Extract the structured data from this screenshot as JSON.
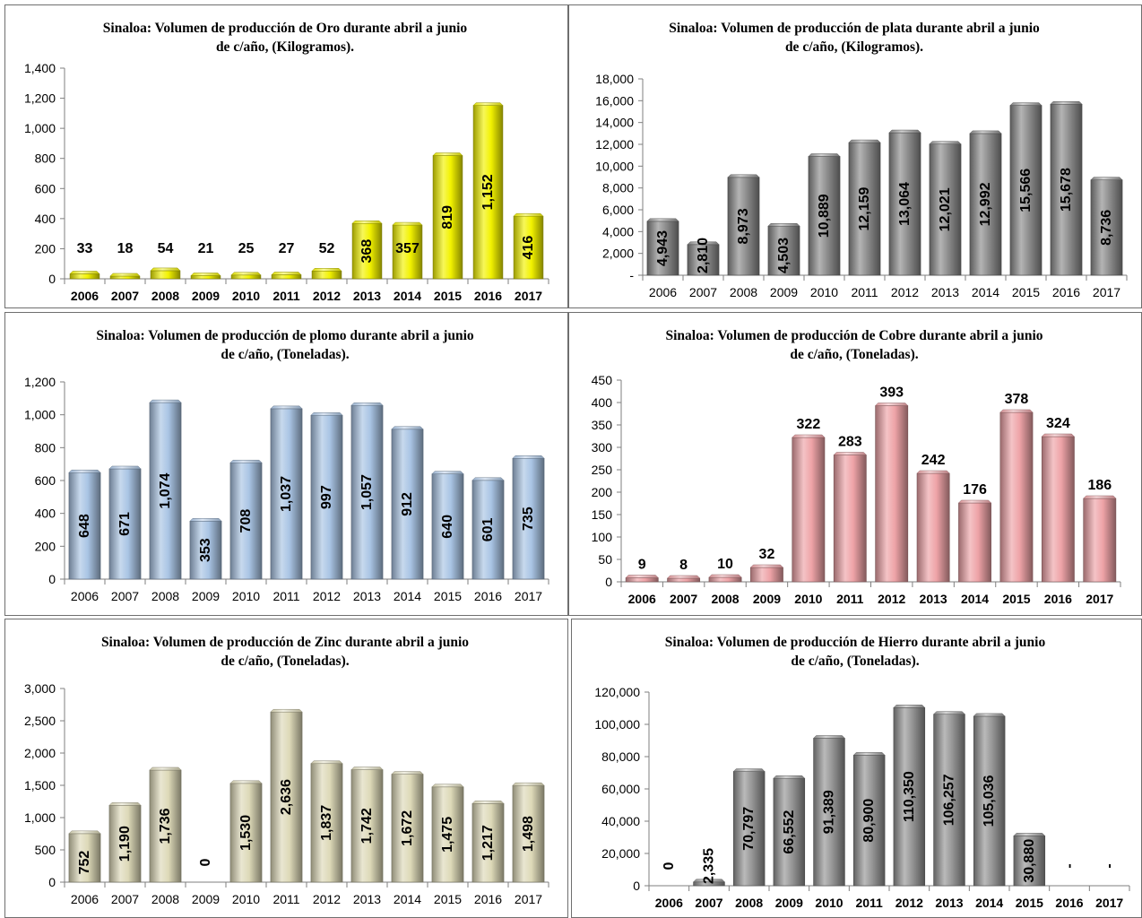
{
  "chart_data": [
    {
      "type": "bar",
      "title_lines": [
        "Sinaloa: Volumen de producción de Oro durante abril a junio",
        "de c/año, (Kilogramos)."
      ],
      "categories": [
        "2006",
        "2007",
        "2008",
        "2009",
        "2010",
        "2011",
        "2012",
        "2013",
        "2014",
        "2015",
        "2016",
        "2017"
      ],
      "values": [
        33,
        18,
        54,
        21,
        25,
        27,
        52,
        368,
        357,
        819,
        1152,
        416
      ],
      "data_labels": [
        "33",
        "18",
        "54",
        "21",
        "25",
        "27",
        "52",
        "368",
        "357",
        "819",
        "1,152",
        "416"
      ],
      "yticks": [
        "0",
        "200",
        "400",
        "600",
        "800",
        "1,000",
        "1,200",
        "1,400"
      ],
      "ylim": [
        0,
        1400
      ],
      "color": "#f2f200",
      "label_style": "rotated-mixed"
    },
    {
      "type": "bar",
      "title_lines": [
        "Sinaloa: Volumen de producción de plata durante abril a junio",
        "de c/año, (Kilogramos)."
      ],
      "categories": [
        "2006",
        "2007",
        "2008",
        "2009",
        "2010",
        "2011",
        "2012",
        "2013",
        "2014",
        "2015",
        "2016",
        "2017"
      ],
      "values": [
        4943,
        2810,
        8973,
        4503,
        10889,
        12159,
        13064,
        12021,
        12992,
        15566,
        15678,
        8736
      ],
      "data_labels": [
        "4,943",
        "2,810",
        "8,973",
        "4,503",
        "10,889",
        "12,159",
        "13,064",
        "12,021",
        "12,992",
        "15,566",
        "15,678",
        "8,736"
      ],
      "yticks": [
        "-",
        "2,000",
        "4,000",
        "6,000",
        "8,000",
        "10,000",
        "12,000",
        "14,000",
        "16,000",
        "18,000"
      ],
      "ylim": [
        0,
        18000
      ],
      "color": "#8c8c8c",
      "label_style": "rotated"
    },
    {
      "type": "bar",
      "title_lines": [
        "Sinaloa: Volumen de producción de plomo durante abril a junio",
        "de c/año, (Toneladas)."
      ],
      "categories": [
        "2006",
        "2007",
        "2008",
        "2009",
        "2010",
        "2011",
        "2012",
        "2013",
        "2014",
        "2015",
        "2016",
        "2017"
      ],
      "values": [
        648,
        671,
        1074,
        353,
        708,
        1037,
        997,
        1057,
        912,
        640,
        601,
        735
      ],
      "data_labels": [
        "648",
        "671",
        "1,074",
        "353",
        "708",
        "1,037",
        "997",
        "1,057",
        "912",
        "640",
        "601",
        "735"
      ],
      "yticks": [
        "0",
        "200",
        "400",
        "600",
        "800",
        "1,000",
        "1,200"
      ],
      "ylim": [
        0,
        1200
      ],
      "color": "#a9c4e4",
      "label_style": "rotated"
    },
    {
      "type": "bar",
      "title_lines": [
        "Sinaloa: Volumen de producción de Cobre durante abril a junio",
        "de c/año, (Toneladas)."
      ],
      "categories": [
        "2006",
        "2007",
        "2008",
        "2009",
        "2010",
        "2011",
        "2012",
        "2013",
        "2014",
        "2015",
        "2016",
        "2017"
      ],
      "values": [
        9,
        8,
        10,
        32,
        322,
        283,
        393,
        242,
        176,
        378,
        324,
        186
      ],
      "data_labels": [
        "9",
        "8",
        "10",
        "32",
        "322",
        "283",
        "393",
        "242",
        "176",
        "378",
        "324",
        "186"
      ],
      "yticks": [
        "0",
        "50",
        "100",
        "150",
        "200",
        "250",
        "300",
        "350",
        "400",
        "450"
      ],
      "ylim": [
        0,
        450
      ],
      "color": "#eea3a7",
      "label_style": "above"
    },
    {
      "type": "bar",
      "title_lines": [
        "Sinaloa: Volumen de producción de Zinc durante abril a junio",
        "de c/año, (Toneladas)."
      ],
      "categories": [
        "2006",
        "2007",
        "2008",
        "2009",
        "2010",
        "2011",
        "2012",
        "2013",
        "2014",
        "2015",
        "2016",
        "2017"
      ],
      "values": [
        752,
        1190,
        1736,
        0,
        1530,
        2636,
        1837,
        1742,
        1672,
        1475,
        1217,
        1498
      ],
      "data_labels": [
        "752",
        "1,190",
        "1,736",
        "0",
        "1,530",
        "2,636",
        "1,837",
        "1,742",
        "1,672",
        "1,475",
        "1,217",
        "1,498"
      ],
      "yticks": [
        "0",
        "500",
        "1,000",
        "1,500",
        "2,000",
        "2,500",
        "3,000"
      ],
      "ylim": [
        0,
        3000
      ],
      "color": "#ddd9b8",
      "label_style": "rotated"
    },
    {
      "type": "bar",
      "title_lines": [
        "Sinaloa: Volumen de producción de Hierro durante abril a junio",
        "de c/año, (Toneladas)."
      ],
      "categories": [
        "2006",
        "2007",
        "2008",
        "2009",
        "2010",
        "2011",
        "2012",
        "2013",
        "2014",
        "2015",
        "2016",
        "2017"
      ],
      "values": [
        0,
        2335,
        70797,
        66552,
        91389,
        80900,
        110350,
        106257,
        105036,
        30880,
        0,
        0
      ],
      "data_labels": [
        "0",
        "2,335",
        "70,797",
        "66,552",
        "91,389",
        "80,900",
        "110,350",
        "106,257",
        "105,036",
        "30,880",
        "-",
        "-"
      ],
      "yticks": [
        "0",
        "20,000",
        "40,000",
        "60,000",
        "80,000",
        "100,000",
        "120,000"
      ],
      "ylim": [
        0,
        120000
      ],
      "color": "#959595",
      "label_style": "rotated"
    }
  ]
}
